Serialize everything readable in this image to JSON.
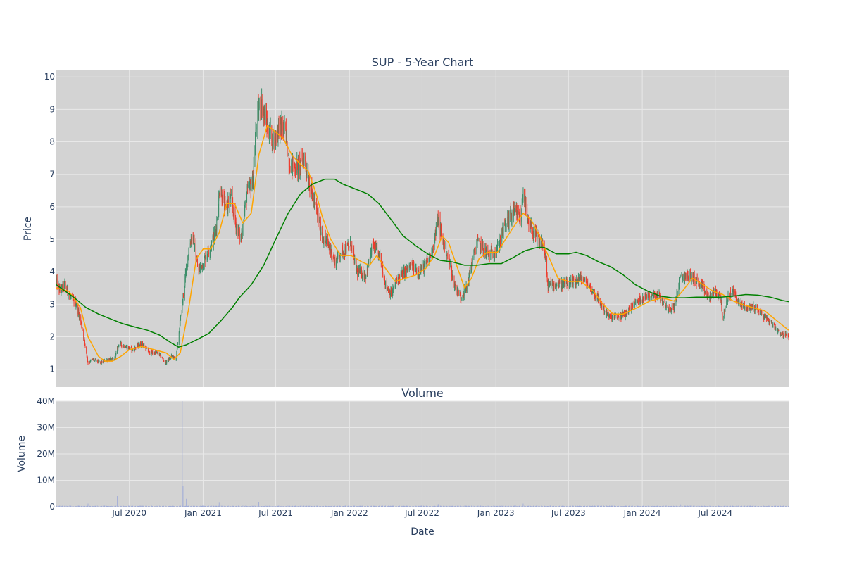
{
  "colors": {
    "background": "#ffffff",
    "plot_bg": "#d3d3d3",
    "grid": "#e8e8e8",
    "text": "#2a3f5f",
    "up": "#3d8f6a",
    "down": "#ef3b2c",
    "ma_short": "#ffa500",
    "ma_long": "#008000",
    "volume": "#9da9d8"
  },
  "chart_data": [
    {
      "type": "candlestick",
      "title": "SUP - 5-Year Chart",
      "ylabel": "Price",
      "ylim": [
        0.45,
        10.2
      ],
      "yticks": [
        1,
        2,
        3,
        4,
        5,
        6,
        7,
        8,
        9,
        10
      ],
      "xlim": [
        "2020-01-01",
        "2024-12-31"
      ],
      "xticks": [
        "2020-07-01",
        "2021-01-01",
        "2021-07-01",
        "2022-01-01",
        "2022-07-01",
        "2023-01-01",
        "2023-07-01",
        "2024-01-01",
        "2024-07-01"
      ],
      "price_anchors": [
        [
          "2020-01-01",
          3.7
        ],
        [
          "2020-01-10",
          3.4
        ],
        [
          "2020-01-22",
          3.6
        ],
        [
          "2020-02-05",
          3.2
        ],
        [
          "2020-02-20",
          3.0
        ],
        [
          "2020-03-05",
          2.3
        ],
        [
          "2020-03-20",
          1.2
        ],
        [
          "2020-04-01",
          1.3
        ],
        [
          "2020-04-20",
          1.2
        ],
        [
          "2020-05-10",
          1.3
        ],
        [
          "2020-05-25",
          1.3
        ],
        [
          "2020-06-05",
          1.8
        ],
        [
          "2020-06-20",
          1.7
        ],
        [
          "2020-07-10",
          1.6
        ],
        [
          "2020-08-01",
          1.8
        ],
        [
          "2020-08-20",
          1.5
        ],
        [
          "2020-09-10",
          1.5
        ],
        [
          "2020-09-30",
          1.2
        ],
        [
          "2020-10-15",
          1.4
        ],
        [
          "2020-10-25",
          1.3
        ],
        [
          "2020-11-10",
          3.0
        ],
        [
          "2020-11-25",
          4.6
        ],
        [
          "2020-12-05",
          5.2
        ],
        [
          "2020-12-20",
          4.0
        ],
        [
          "2021-01-10",
          4.5
        ],
        [
          "2021-02-01",
          5.2
        ],
        [
          "2021-02-12",
          6.6
        ],
        [
          "2021-02-25",
          5.9
        ],
        [
          "2021-03-10",
          6.3
        ],
        [
          "2021-03-25",
          5.4
        ],
        [
          "2021-04-05",
          5.0
        ],
        [
          "2021-04-20",
          6.4
        ],
        [
          "2021-05-05",
          6.8
        ],
        [
          "2021-05-15",
          8.8
        ],
        [
          "2021-05-25",
          9.2
        ],
        [
          "2021-06-10",
          8.5
        ],
        [
          "2021-06-25",
          8.0
        ],
        [
          "2021-07-10",
          8.5
        ],
        [
          "2021-07-25",
          8.3
        ],
        [
          "2021-08-05",
          7.3
        ],
        [
          "2021-08-25",
          7.2
        ],
        [
          "2021-09-10",
          7.5
        ],
        [
          "2021-09-25",
          6.6
        ],
        [
          "2021-10-10",
          5.9
        ],
        [
          "2021-10-25",
          5.1
        ],
        [
          "2021-11-10",
          4.8
        ],
        [
          "2021-11-25",
          4.3
        ],
        [
          "2021-12-10",
          4.6
        ],
        [
          "2022-01-05",
          4.8
        ],
        [
          "2022-01-20",
          4.0
        ],
        [
          "2022-02-10",
          3.9
        ],
        [
          "2022-03-01",
          4.8
        ],
        [
          "2022-03-20",
          4.4
        ],
        [
          "2022-04-01",
          3.6
        ],
        [
          "2022-04-15",
          3.3
        ],
        [
          "2022-05-01",
          3.8
        ],
        [
          "2022-05-20",
          4.0
        ],
        [
          "2022-06-05",
          4.2
        ],
        [
          "2022-06-20",
          4.0
        ],
        [
          "2022-07-10",
          4.2
        ],
        [
          "2022-07-25",
          4.6
        ],
        [
          "2022-08-10",
          5.6
        ],
        [
          "2022-08-20",
          5.0
        ],
        [
          "2022-09-05",
          4.4
        ],
        [
          "2022-09-20",
          3.6
        ],
        [
          "2022-10-05",
          3.2
        ],
        [
          "2022-10-20",
          3.5
        ],
        [
          "2022-11-01",
          4.2
        ],
        [
          "2022-11-15",
          4.9
        ],
        [
          "2022-12-01",
          4.7
        ],
        [
          "2022-12-15",
          4.5
        ],
        [
          "2023-01-05",
          4.7
        ],
        [
          "2023-01-20",
          5.3
        ],
        [
          "2023-02-05",
          5.7
        ],
        [
          "2023-02-20",
          5.8
        ],
        [
          "2023-03-05",
          5.6
        ],
        [
          "2023-03-10",
          6.6
        ],
        [
          "2023-03-20",
          5.5
        ],
        [
          "2023-04-05",
          5.2
        ],
        [
          "2023-04-20",
          4.9
        ],
        [
          "2023-05-01",
          4.8
        ],
        [
          "2023-05-10",
          3.6
        ],
        [
          "2023-06-01",
          3.6
        ],
        [
          "2023-07-01",
          3.6
        ],
        [
          "2023-08-01",
          3.8
        ],
        [
          "2023-08-20",
          3.6
        ],
        [
          "2023-09-10",
          3.2
        ],
        [
          "2023-09-25",
          2.9
        ],
        [
          "2023-10-10",
          2.6
        ],
        [
          "2023-11-01",
          2.6
        ],
        [
          "2023-11-20",
          2.7
        ],
        [
          "2023-12-10",
          3.0
        ],
        [
          "2024-01-01",
          3.2
        ],
        [
          "2024-01-20",
          3.3
        ],
        [
          "2024-02-10",
          3.3
        ],
        [
          "2024-03-01",
          2.9
        ],
        [
          "2024-03-20",
          2.9
        ],
        [
          "2024-04-05",
          3.8
        ],
        [
          "2024-04-20",
          3.9
        ],
        [
          "2024-05-10",
          3.8
        ],
        [
          "2024-05-30",
          3.5
        ],
        [
          "2024-06-15",
          3.2
        ],
        [
          "2024-06-30",
          3.4
        ],
        [
          "2024-07-15",
          3.2
        ],
        [
          "2024-07-20",
          2.5
        ],
        [
          "2024-08-01",
          3.2
        ],
        [
          "2024-08-15",
          3.4
        ],
        [
          "2024-08-30",
          3.0
        ],
        [
          "2024-09-20",
          2.9
        ],
        [
          "2024-10-10",
          2.9
        ],
        [
          "2024-11-01",
          2.6
        ],
        [
          "2024-11-20",
          2.4
        ],
        [
          "2024-12-10",
          2.1
        ],
        [
          "2024-12-31",
          2.0
        ]
      ],
      "series": [
        {
          "name": "",
          "kind": "ma_short",
          "points": [
            [
              "2020-01-01",
              3.5
            ],
            [
              "2020-02-01",
              3.4
            ],
            [
              "2020-03-01",
              2.9
            ],
            [
              "2020-03-20",
              2.0
            ],
            [
              "2020-04-15",
              1.4
            ],
            [
              "2020-05-01",
              1.25
            ],
            [
              "2020-05-20",
              1.25
            ],
            [
              "2020-06-10",
              1.4
            ],
            [
              "2020-07-01",
              1.6
            ],
            [
              "2020-08-01",
              1.7
            ],
            [
              "2020-09-01",
              1.6
            ],
            [
              "2020-10-01",
              1.5
            ],
            [
              "2020-10-20",
              1.3
            ],
            [
              "2020-11-05",
              1.5
            ],
            [
              "2020-11-25",
              2.8
            ],
            [
              "2020-12-15",
              4.4
            ],
            [
              "2021-01-01",
              4.7
            ],
            [
              "2021-01-20",
              4.7
            ],
            [
              "2021-02-10",
              5.2
            ],
            [
              "2021-03-01",
              6.1
            ],
            [
              "2021-03-20",
              6.1
            ],
            [
              "2021-04-10",
              5.5
            ],
            [
              "2021-05-01",
              5.8
            ],
            [
              "2021-05-20",
              7.6
            ],
            [
              "2021-06-10",
              8.5
            ],
            [
              "2021-07-01",
              8.3
            ],
            [
              "2021-07-20",
              8.1
            ],
            [
              "2021-08-10",
              7.6
            ],
            [
              "2021-09-01",
              7.3
            ],
            [
              "2021-09-20",
              7.1
            ],
            [
              "2021-10-10",
              6.4
            ],
            [
              "2021-10-25",
              5.7
            ],
            [
              "2021-11-15",
              5.0
            ],
            [
              "2021-12-10",
              4.5
            ],
            [
              "2022-01-05",
              4.5
            ],
            [
              "2022-02-01",
              4.3
            ],
            [
              "2022-02-20",
              4.2
            ],
            [
              "2022-03-10",
              4.5
            ],
            [
              "2022-04-01",
              4.1
            ],
            [
              "2022-04-25",
              3.7
            ],
            [
              "2022-05-20",
              3.8
            ],
            [
              "2022-06-15",
              3.9
            ],
            [
              "2022-07-10",
              4.1
            ],
            [
              "2022-08-01",
              4.5
            ],
            [
              "2022-08-20",
              5.1
            ],
            [
              "2022-09-05",
              4.9
            ],
            [
              "2022-09-25",
              4.2
            ],
            [
              "2022-10-15",
              3.5
            ],
            [
              "2022-11-01",
              3.8
            ],
            [
              "2022-11-20",
              4.4
            ],
            [
              "2022-12-10",
              4.6
            ],
            [
              "2023-01-05",
              4.6
            ],
            [
              "2023-01-25",
              5.0
            ],
            [
              "2023-02-15",
              5.4
            ],
            [
              "2023-03-10",
              5.8
            ],
            [
              "2023-03-30",
              5.6
            ],
            [
              "2023-04-20",
              5.1
            ],
            [
              "2023-05-15",
              4.4
            ],
            [
              "2023-06-05",
              3.8
            ],
            [
              "2023-07-01",
              3.7
            ],
            [
              "2023-08-01",
              3.7
            ],
            [
              "2023-09-01",
              3.4
            ],
            [
              "2023-09-25",
              3.0
            ],
            [
              "2023-10-20",
              2.7
            ],
            [
              "2023-11-15",
              2.7
            ],
            [
              "2023-12-20",
              2.9
            ],
            [
              "2024-01-20",
              3.1
            ],
            [
              "2024-02-20",
              3.2
            ],
            [
              "2024-03-20",
              3.1
            ],
            [
              "2024-04-10",
              3.4
            ],
            [
              "2024-05-05",
              3.8
            ],
            [
              "2024-06-01",
              3.6
            ],
            [
              "2024-06-25",
              3.4
            ],
            [
              "2024-07-20",
              3.3
            ],
            [
              "2024-08-15",
              3.1
            ],
            [
              "2024-09-05",
              3.0
            ],
            [
              "2024-10-01",
              2.9
            ],
            [
              "2024-11-01",
              2.8
            ],
            [
              "2024-12-01",
              2.5
            ],
            [
              "2024-12-31",
              2.2
            ]
          ]
        },
        {
          "name": "",
          "kind": "ma_long",
          "points": [
            [
              "2020-01-01",
              3.6
            ],
            [
              "2020-02-15",
              3.2
            ],
            [
              "2020-03-15",
              2.9
            ],
            [
              "2020-04-15",
              2.7
            ],
            [
              "2020-05-15",
              2.55
            ],
            [
              "2020-06-15",
              2.4
            ],
            [
              "2020-07-15",
              2.3
            ],
            [
              "2020-08-15",
              2.2
            ],
            [
              "2020-09-15",
              2.05
            ],
            [
              "2020-10-15",
              1.8
            ],
            [
              "2020-11-01",
              1.68
            ],
            [
              "2020-11-20",
              1.75
            ],
            [
              "2020-12-15",
              1.9
            ],
            [
              "2021-01-15",
              2.1
            ],
            [
              "2021-02-15",
              2.5
            ],
            [
              "2021-03-15",
              2.9
            ],
            [
              "2021-04-01",
              3.2
            ],
            [
              "2021-05-01",
              3.6
            ],
            [
              "2021-06-01",
              4.2
            ],
            [
              "2021-07-01",
              5.0
            ],
            [
              "2021-08-01",
              5.8
            ],
            [
              "2021-09-01",
              6.4
            ],
            [
              "2021-10-01",
              6.7
            ],
            [
              "2021-11-01",
              6.85
            ],
            [
              "2021-11-25",
              6.85
            ],
            [
              "2021-12-15",
              6.7
            ],
            [
              "2022-01-15",
              6.55
            ],
            [
              "2022-02-15",
              6.4
            ],
            [
              "2022-03-15",
              6.1
            ],
            [
              "2022-04-15",
              5.6
            ],
            [
              "2022-05-15",
              5.1
            ],
            [
              "2022-06-15",
              4.8
            ],
            [
              "2022-07-15",
              4.55
            ],
            [
              "2022-08-15",
              4.35
            ],
            [
              "2022-09-15",
              4.3
            ],
            [
              "2022-10-15",
              4.2
            ],
            [
              "2022-11-15",
              4.2
            ],
            [
              "2022-12-15",
              4.25
            ],
            [
              "2023-01-15",
              4.25
            ],
            [
              "2023-02-15",
              4.45
            ],
            [
              "2023-03-15",
              4.65
            ],
            [
              "2023-04-15",
              4.75
            ],
            [
              "2023-05-01",
              4.75
            ],
            [
              "2023-06-01",
              4.55
            ],
            [
              "2023-07-01",
              4.55
            ],
            [
              "2023-07-20",
              4.6
            ],
            [
              "2023-08-15",
              4.5
            ],
            [
              "2023-09-15",
              4.3
            ],
            [
              "2023-10-15",
              4.15
            ],
            [
              "2023-11-15",
              3.9
            ],
            [
              "2023-12-15",
              3.6
            ],
            [
              "2024-01-15",
              3.4
            ],
            [
              "2024-02-15",
              3.25
            ],
            [
              "2024-03-15",
              3.2
            ],
            [
              "2024-04-15",
              3.2
            ],
            [
              "2024-05-15",
              3.22
            ],
            [
              "2024-06-15",
              3.22
            ],
            [
              "2024-07-15",
              3.22
            ],
            [
              "2024-08-15",
              3.25
            ],
            [
              "2024-09-15",
              3.3
            ],
            [
              "2024-10-15",
              3.28
            ],
            [
              "2024-11-15",
              3.22
            ],
            [
              "2024-12-15",
              3.12
            ],
            [
              "2024-12-31",
              3.08
            ]
          ]
        }
      ],
      "volatility": 0.07
    },
    {
      "type": "bar",
      "title": "Volume",
      "ylabel": "Volume",
      "xlabel": "Date",
      "ylim": [
        0,
        40000000
      ],
      "yticks": [
        0,
        10000000,
        20000000,
        30000000,
        40000000
      ],
      "ytick_labels": [
        "0",
        "10M",
        "20M",
        "30M",
        "40M"
      ],
      "base_volume": 250000,
      "spikes": [
        [
          "2020-01-05",
          3500000
        ],
        [
          "2020-03-20",
          1200000
        ],
        [
          "2020-06-01",
          4000000
        ],
        [
          "2020-11-10",
          40000000
        ],
        [
          "2020-11-12",
          8000000
        ],
        [
          "2020-11-20",
          3000000
        ],
        [
          "2021-02-10",
          1500000
        ],
        [
          "2021-05-20",
          1800000
        ],
        [
          "2022-08-10",
          1000000
        ],
        [
          "2023-03-10",
          1200000
        ],
        [
          "2024-04-05",
          900000
        ],
        [
          "2024-07-20",
          800000
        ]
      ]
    }
  ]
}
